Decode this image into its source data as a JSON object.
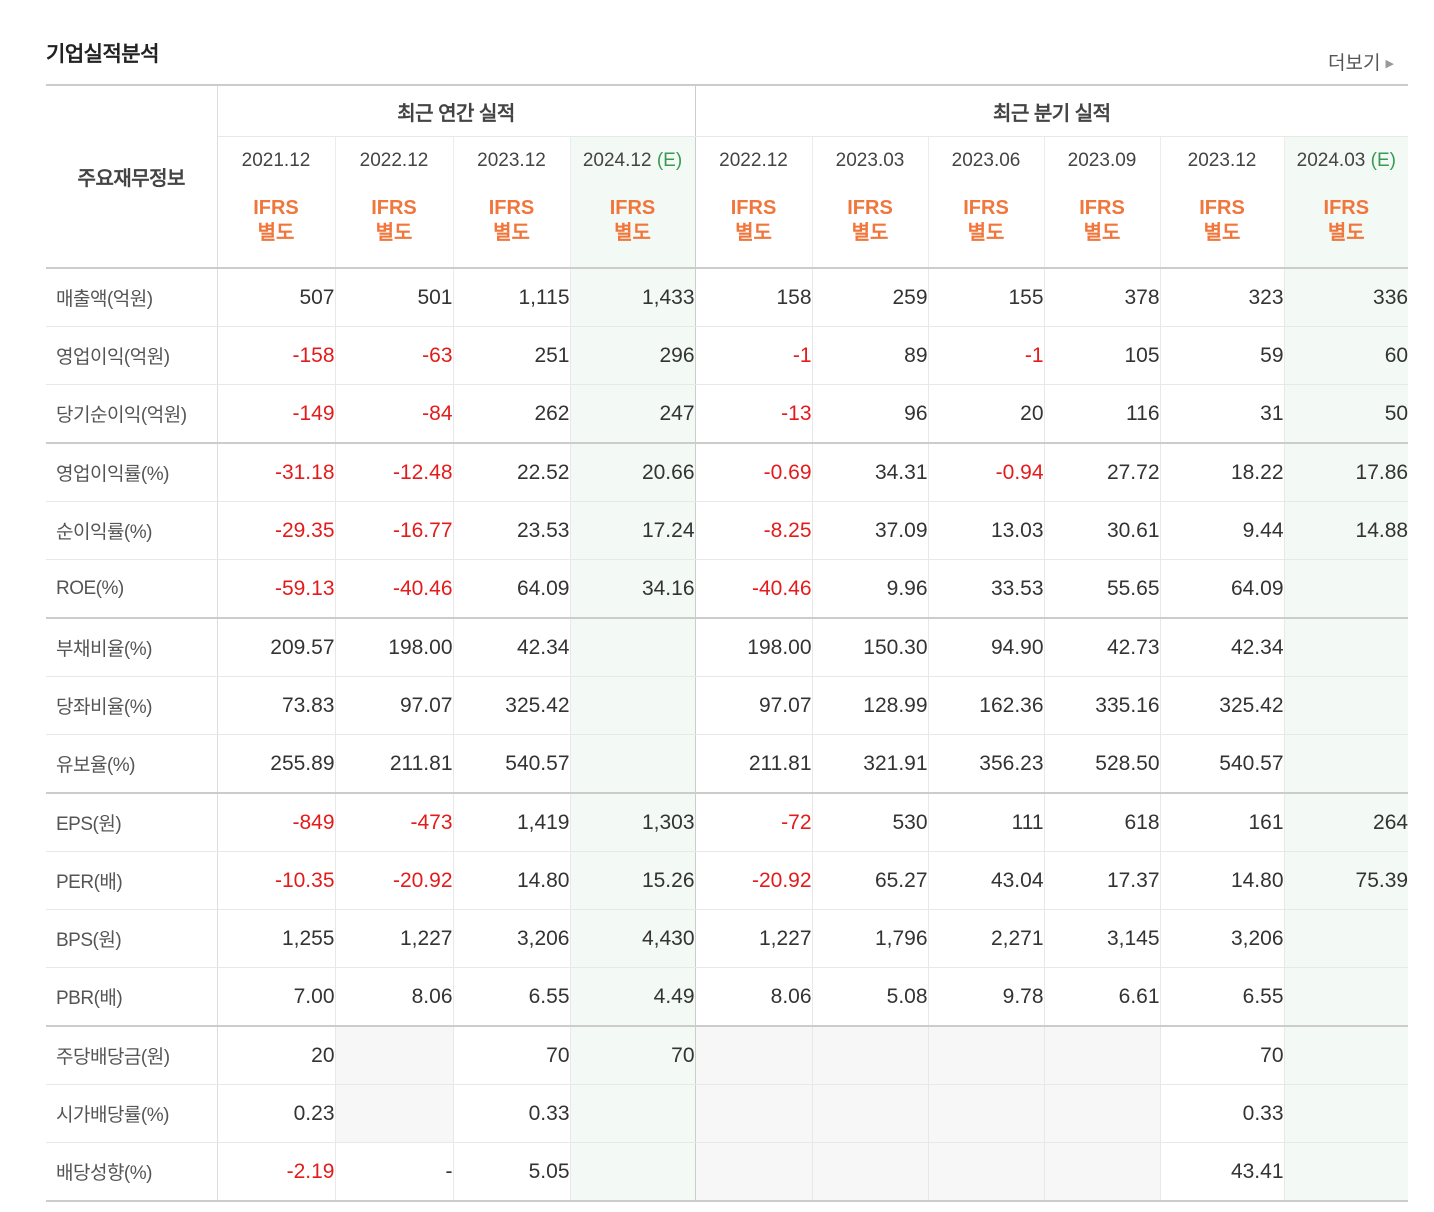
{
  "section_title": "기업실적분석",
  "more_label": "더보기",
  "table": {
    "corner_label": "주요재무정보",
    "groups": {
      "annual": "최근 연간 실적",
      "quarterly": "최근 분기 실적"
    },
    "periods": [
      {
        "label": "2021.12",
        "est": ""
      },
      {
        "label": "2022.12",
        "est": ""
      },
      {
        "label": "2023.12",
        "est": ""
      },
      {
        "label": "2024.12",
        "est": "(E)"
      },
      {
        "label": "2022.12",
        "est": ""
      },
      {
        "label": "2023.03",
        "est": ""
      },
      {
        "label": "2023.06",
        "est": ""
      },
      {
        "label": "2023.09",
        "est": ""
      },
      {
        "label": "2023.12",
        "est": ""
      },
      {
        "label": "2024.03",
        "est": "(E)"
      }
    ],
    "type_line1": "IFRS",
    "type_line2": "별도",
    "rows": [
      {
        "label": "매출액(억원)",
        "values": [
          "507",
          "501",
          "1,115",
          "1,433",
          "158",
          "259",
          "155",
          "378",
          "323",
          "336"
        ]
      },
      {
        "label": "영업이익(억원)",
        "values": [
          "-158",
          "-63",
          "251",
          "296",
          "-1",
          "89",
          "-1",
          "105",
          "59",
          "60"
        ]
      },
      {
        "label": "당기순이익(억원)",
        "values": [
          "-149",
          "-84",
          "262",
          "247",
          "-13",
          "96",
          "20",
          "116",
          "31",
          "50"
        ]
      },
      {
        "label": "영업이익률(%)",
        "values": [
          "-31.18",
          "-12.48",
          "22.52",
          "20.66",
          "-0.69",
          "34.31",
          "-0.94",
          "27.72",
          "18.22",
          "17.86"
        ]
      },
      {
        "label": "순이익률(%)",
        "values": [
          "-29.35",
          "-16.77",
          "23.53",
          "17.24",
          "-8.25",
          "37.09",
          "13.03",
          "30.61",
          "9.44",
          "14.88"
        ]
      },
      {
        "label": "ROE(%)",
        "values": [
          "-59.13",
          "-40.46",
          "64.09",
          "34.16",
          "-40.46",
          "9.96",
          "33.53",
          "55.65",
          "64.09",
          ""
        ]
      },
      {
        "label": "부채비율(%)",
        "values": [
          "209.57",
          "198.00",
          "42.34",
          "",
          "198.00",
          "150.30",
          "94.90",
          "42.73",
          "42.34",
          ""
        ]
      },
      {
        "label": "당좌비율(%)",
        "values": [
          "73.83",
          "97.07",
          "325.42",
          "",
          "97.07",
          "128.99",
          "162.36",
          "335.16",
          "325.42",
          ""
        ]
      },
      {
        "label": "유보율(%)",
        "values": [
          "255.89",
          "211.81",
          "540.57",
          "",
          "211.81",
          "321.91",
          "356.23",
          "528.50",
          "540.57",
          ""
        ]
      },
      {
        "label": "EPS(원)",
        "values": [
          "-849",
          "-473",
          "1,419",
          "1,303",
          "-72",
          "530",
          "111",
          "618",
          "161",
          "264"
        ]
      },
      {
        "label": "PER(배)",
        "values": [
          "-10.35",
          "-20.92",
          "14.80",
          "15.26",
          "-20.92",
          "65.27",
          "43.04",
          "17.37",
          "14.80",
          "75.39"
        ]
      },
      {
        "label": "BPS(원)",
        "values": [
          "1,255",
          "1,227",
          "3,206",
          "4,430",
          "1,227",
          "1,796",
          "2,271",
          "3,145",
          "3,206",
          ""
        ]
      },
      {
        "label": "PBR(배)",
        "values": [
          "7.00",
          "8.06",
          "6.55",
          "4.49",
          "8.06",
          "5.08",
          "9.78",
          "6.61",
          "6.55",
          ""
        ]
      },
      {
        "label": "주당배당금(원)",
        "values": [
          "20",
          "",
          "70",
          "70",
          "",
          "",
          "",
          "",
          "70",
          ""
        ]
      },
      {
        "label": "시가배당률(%)",
        "values": [
          "0.23",
          "",
          "0.33",
          "",
          "",
          "",
          "",
          "",
          "0.33",
          ""
        ]
      },
      {
        "label": "배당성향(%)",
        "values": [
          "-2.19",
          "-",
          "5.05",
          "",
          "",
          "",
          "",
          "",
          "43.41",
          ""
        ]
      }
    ]
  }
}
